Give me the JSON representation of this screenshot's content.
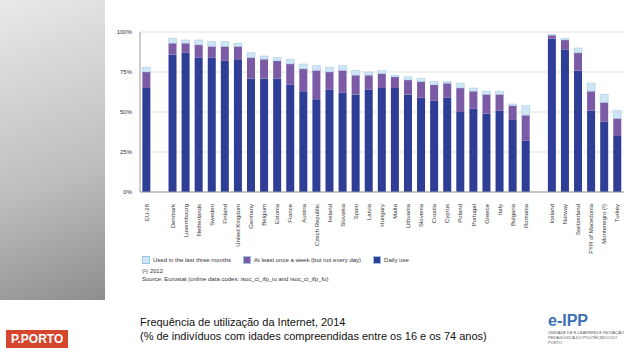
{
  "chart_data": {
    "type": "bar",
    "stacked": true,
    "grid": true,
    "legend": "bottom",
    "title": "Frequência de utilização da Internet, 2014",
    "subtitle": "(% de indivíduos com idades compreendidas entre os 16 e os 74 anos)",
    "annotations": [
      "(¹) 2012",
      "Source: Eurostat (online data codes: isoc_ci_ifp_iu and isoc_ci_ifp_fu)",
      "P.PORTO",
      "e-IPP",
      "UNIDADE DE E-LEARNING E INOVAÇÃO PEDAGÓGICA DO POLITÉCNICO DO PORTO"
    ],
    "categories": [
      "EU-28",
      null,
      "Denmark",
      "Luxembourg",
      "Netherlands",
      "Sweden",
      "Finland",
      "United Kingdom",
      "Germany",
      "Belgium",
      "Estonia",
      "France",
      "Austria",
      "Czech Republic",
      "Ireland",
      "Slovakia",
      "Spain",
      "Latvia",
      "Hungary",
      "Malta",
      "Lithuania",
      "Slovenia",
      "Croatia",
      "Cyprus",
      "Poland",
      "Portugal",
      "Greece",
      "Italy",
      "Bulgaria",
      "Romania",
      null,
      "Iceland",
      "Norway",
      "Switzerland",
      "FYR of Macedonia",
      "Montenegro (¹)",
      "Turkey"
    ],
    "series": [
      {
        "name": "Used in the last three months",
        "color": "#cfe6f5",
        "values": [
          3,
          null,
          3,
          2,
          3,
          3,
          3,
          2,
          3,
          2,
          2,
          3,
          3,
          3,
          3,
          3,
          3,
          2,
          2,
          1,
          2,
          2,
          2,
          1,
          3,
          2,
          2,
          2,
          1,
          6,
          null,
          0.5,
          1,
          3,
          5,
          5,
          5
        ]
      },
      {
        "name": "At least once a week (but not every day)",
        "color": "#7b5aa6",
        "values": [
          10,
          null,
          7,
          6,
          8,
          7,
          9,
          8,
          13,
          12,
          11,
          13,
          14,
          18,
          11,
          14,
          12,
          9,
          9,
          7,
          9,
          10,
          10,
          9,
          15,
          11,
          12,
          10,
          9,
          16,
          null,
          2,
          6,
          11,
          12,
          12,
          11
        ]
      },
      {
        "name": "Daily use",
        "color": "#2e3d96",
        "values": [
          65,
          null,
          86,
          87,
          84,
          84,
          82,
          83,
          71,
          71,
          71,
          67,
          63,
          58,
          64,
          62,
          61,
          64,
          65,
          65,
          61,
          59,
          57,
          59,
          50,
          52,
          49,
          51,
          45,
          32,
          null,
          96,
          89,
          76,
          51,
          44,
          35
        ]
      }
    ],
    "ylim": [
      0,
      100
    ],
    "yticks": [
      {
        "value": 0,
        "label": "0%"
      },
      {
        "value": 25,
        "label": "25%"
      },
      {
        "value": 50,
        "label": "50%"
      },
      {
        "value": 75,
        "label": "75%"
      },
      {
        "value": 100,
        "label": "100%"
      }
    ]
  }
}
